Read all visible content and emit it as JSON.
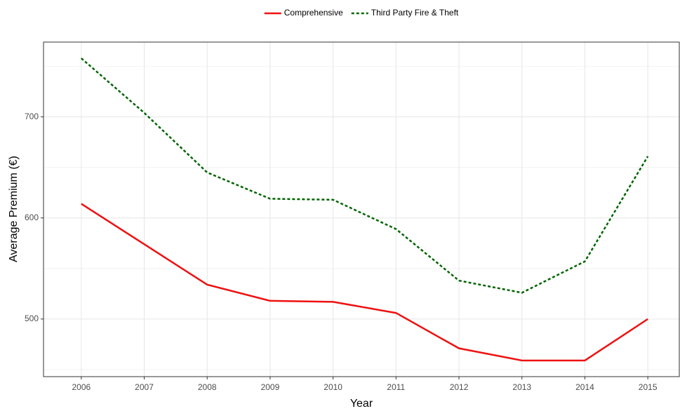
{
  "chart_data": {
    "type": "line",
    "x": [
      2006,
      2007,
      2008,
      2009,
      2010,
      2011,
      2012,
      2013,
      2014,
      2015
    ],
    "series": [
      {
        "name": "Comprehensive",
        "color": "#ee1111",
        "linestyle": "solid",
        "values": [
          614,
          574,
          534,
          518,
          517,
          506,
          471,
          459,
          459,
          500
        ]
      },
      {
        "name": "Third Party Fire & Theft",
        "color": "#006400",
        "linestyle": "dotted",
        "values": [
          758,
          704,
          645,
          619,
          618,
          589,
          538,
          526,
          557,
          661
        ]
      }
    ],
    "xlabel": "Year",
    "ylabel": "Average Premium (€)",
    "xlim": [
      2005.4,
      2015.5
    ],
    "xticks": [
      2006,
      2007,
      2008,
      2009,
      2010,
      2011,
      2012,
      2013,
      2014,
      2015
    ],
    "ylim": [
      443,
      774
    ],
    "yticks": [
      500,
      600,
      700
    ],
    "grid": true,
    "legend": "top"
  }
}
